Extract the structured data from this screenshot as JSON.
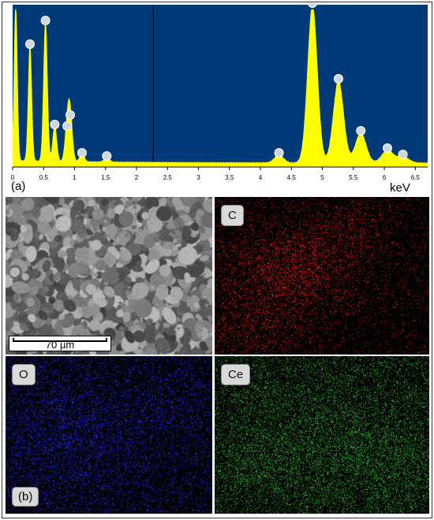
{
  "figure": {
    "panel_a_label": "(a)",
    "panel_b_label": "(b)",
    "x_unit": "keV",
    "scale_bar": "70 µm",
    "maps": [
      {
        "element": "C",
        "color": "#ff1a1a"
      },
      {
        "element": "O",
        "color": "#2a2aff"
      },
      {
        "element": "Ce",
        "color": "#33b833"
      }
    ],
    "colors": {
      "spectrum_bg": "#003a78",
      "spectrum_fill": "#ffff00"
    }
  },
  "chart_data": {
    "type": "area",
    "xlabel": "keV",
    "ylabel": "",
    "xlim": [
      0,
      6.7
    ],
    "x_ticks": [
      "0",
      "0.5",
      "1",
      "1.5",
      "2",
      "2.5",
      "3",
      "3.5",
      "4",
      "4.5",
      "5",
      "5.5",
      "6",
      "6.5"
    ],
    "peaks": [
      {
        "x": 0.05,
        "y": 100
      },
      {
        "x": 0.28,
        "y": 74
      },
      {
        "x": 0.53,
        "y": 89
      },
      {
        "x": 0.68,
        "y": 23
      },
      {
        "x": 0.88,
        "y": 22
      },
      {
        "x": 0.93,
        "y": 29
      },
      {
        "x": 1.12,
        "y": 5
      },
      {
        "x": 1.52,
        "y": 3
      },
      {
        "x": 4.3,
        "y": 5
      },
      {
        "x": 4.84,
        "y": 100
      },
      {
        "x": 5.26,
        "y": 52
      },
      {
        "x": 5.62,
        "y": 19
      },
      {
        "x": 6.05,
        "y": 8
      },
      {
        "x": 6.3,
        "y": 4
      }
    ],
    "labeled_peaks_x": [
      0.28,
      0.53,
      0.68,
      0.88,
      0.93,
      1.12,
      1.52,
      4.3,
      4.84,
      5.26,
      5.62,
      6.05,
      6.3
    ]
  }
}
